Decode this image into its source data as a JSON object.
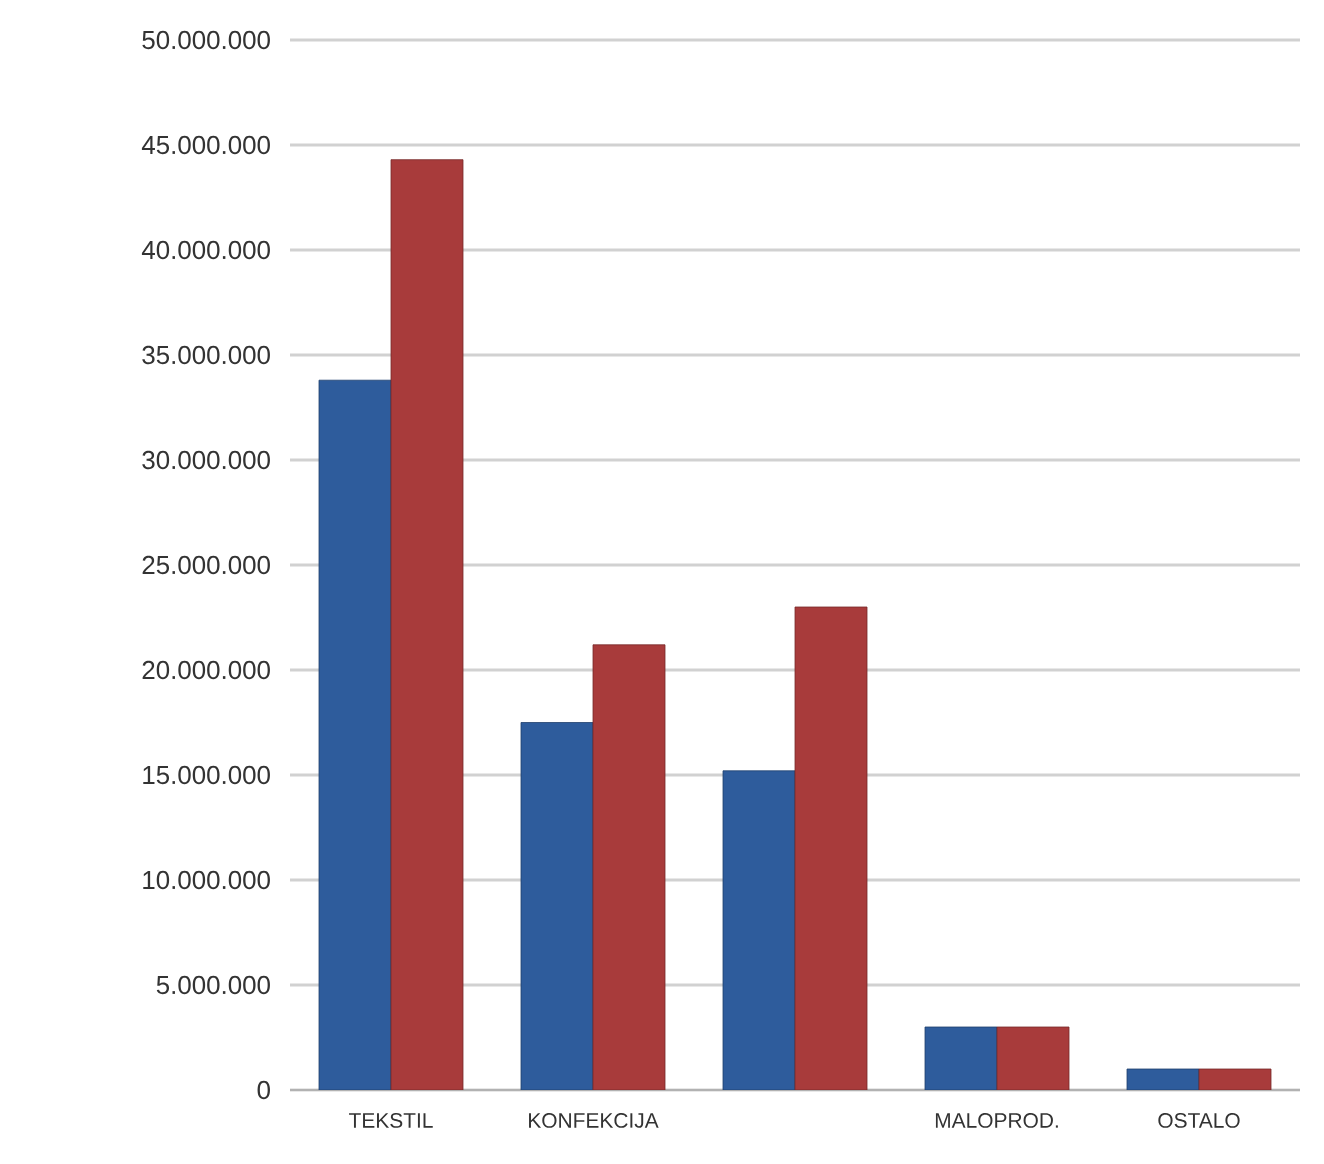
{
  "chart_data": {
    "type": "bar",
    "categories": [
      "TEKSTIL",
      "KONFEKCIJA",
      null,
      "MALOPROD.",
      "OSTALO"
    ],
    "series": [
      {
        "color": "#2e5c9c",
        "values": [
          33800000,
          17500000,
          15200000,
          3000000,
          1000000
        ]
      },
      {
        "color": "#a83b3b",
        "values": [
          44300000,
          21200000,
          23000000,
          3000000,
          1000000
        ]
      }
    ],
    "ylim": [
      0,
      50000000
    ],
    "yticks": [
      0,
      {
        "value": 5000000,
        "label": "5.000.000"
      },
      {
        "value": 10000000,
        "label": "10.000.000"
      },
      {
        "value": 15000000,
        "label": "15.000.000"
      },
      {
        "value": 20000000,
        "label": "20.000.000"
      },
      {
        "value": 25000000,
        "label": "25.000.000"
      },
      {
        "value": 30000000,
        "label": "30.000.000"
      },
      {
        "value": 35000000,
        "label": "35.000.000"
      },
      {
        "value": 40000000,
        "label": "40.000.000"
      },
      {
        "value": 45000000,
        "label": "45.000.000"
      },
      {
        "value": 50000000,
        "label": "50.000.000"
      }
    ],
    "grid": "y"
  }
}
